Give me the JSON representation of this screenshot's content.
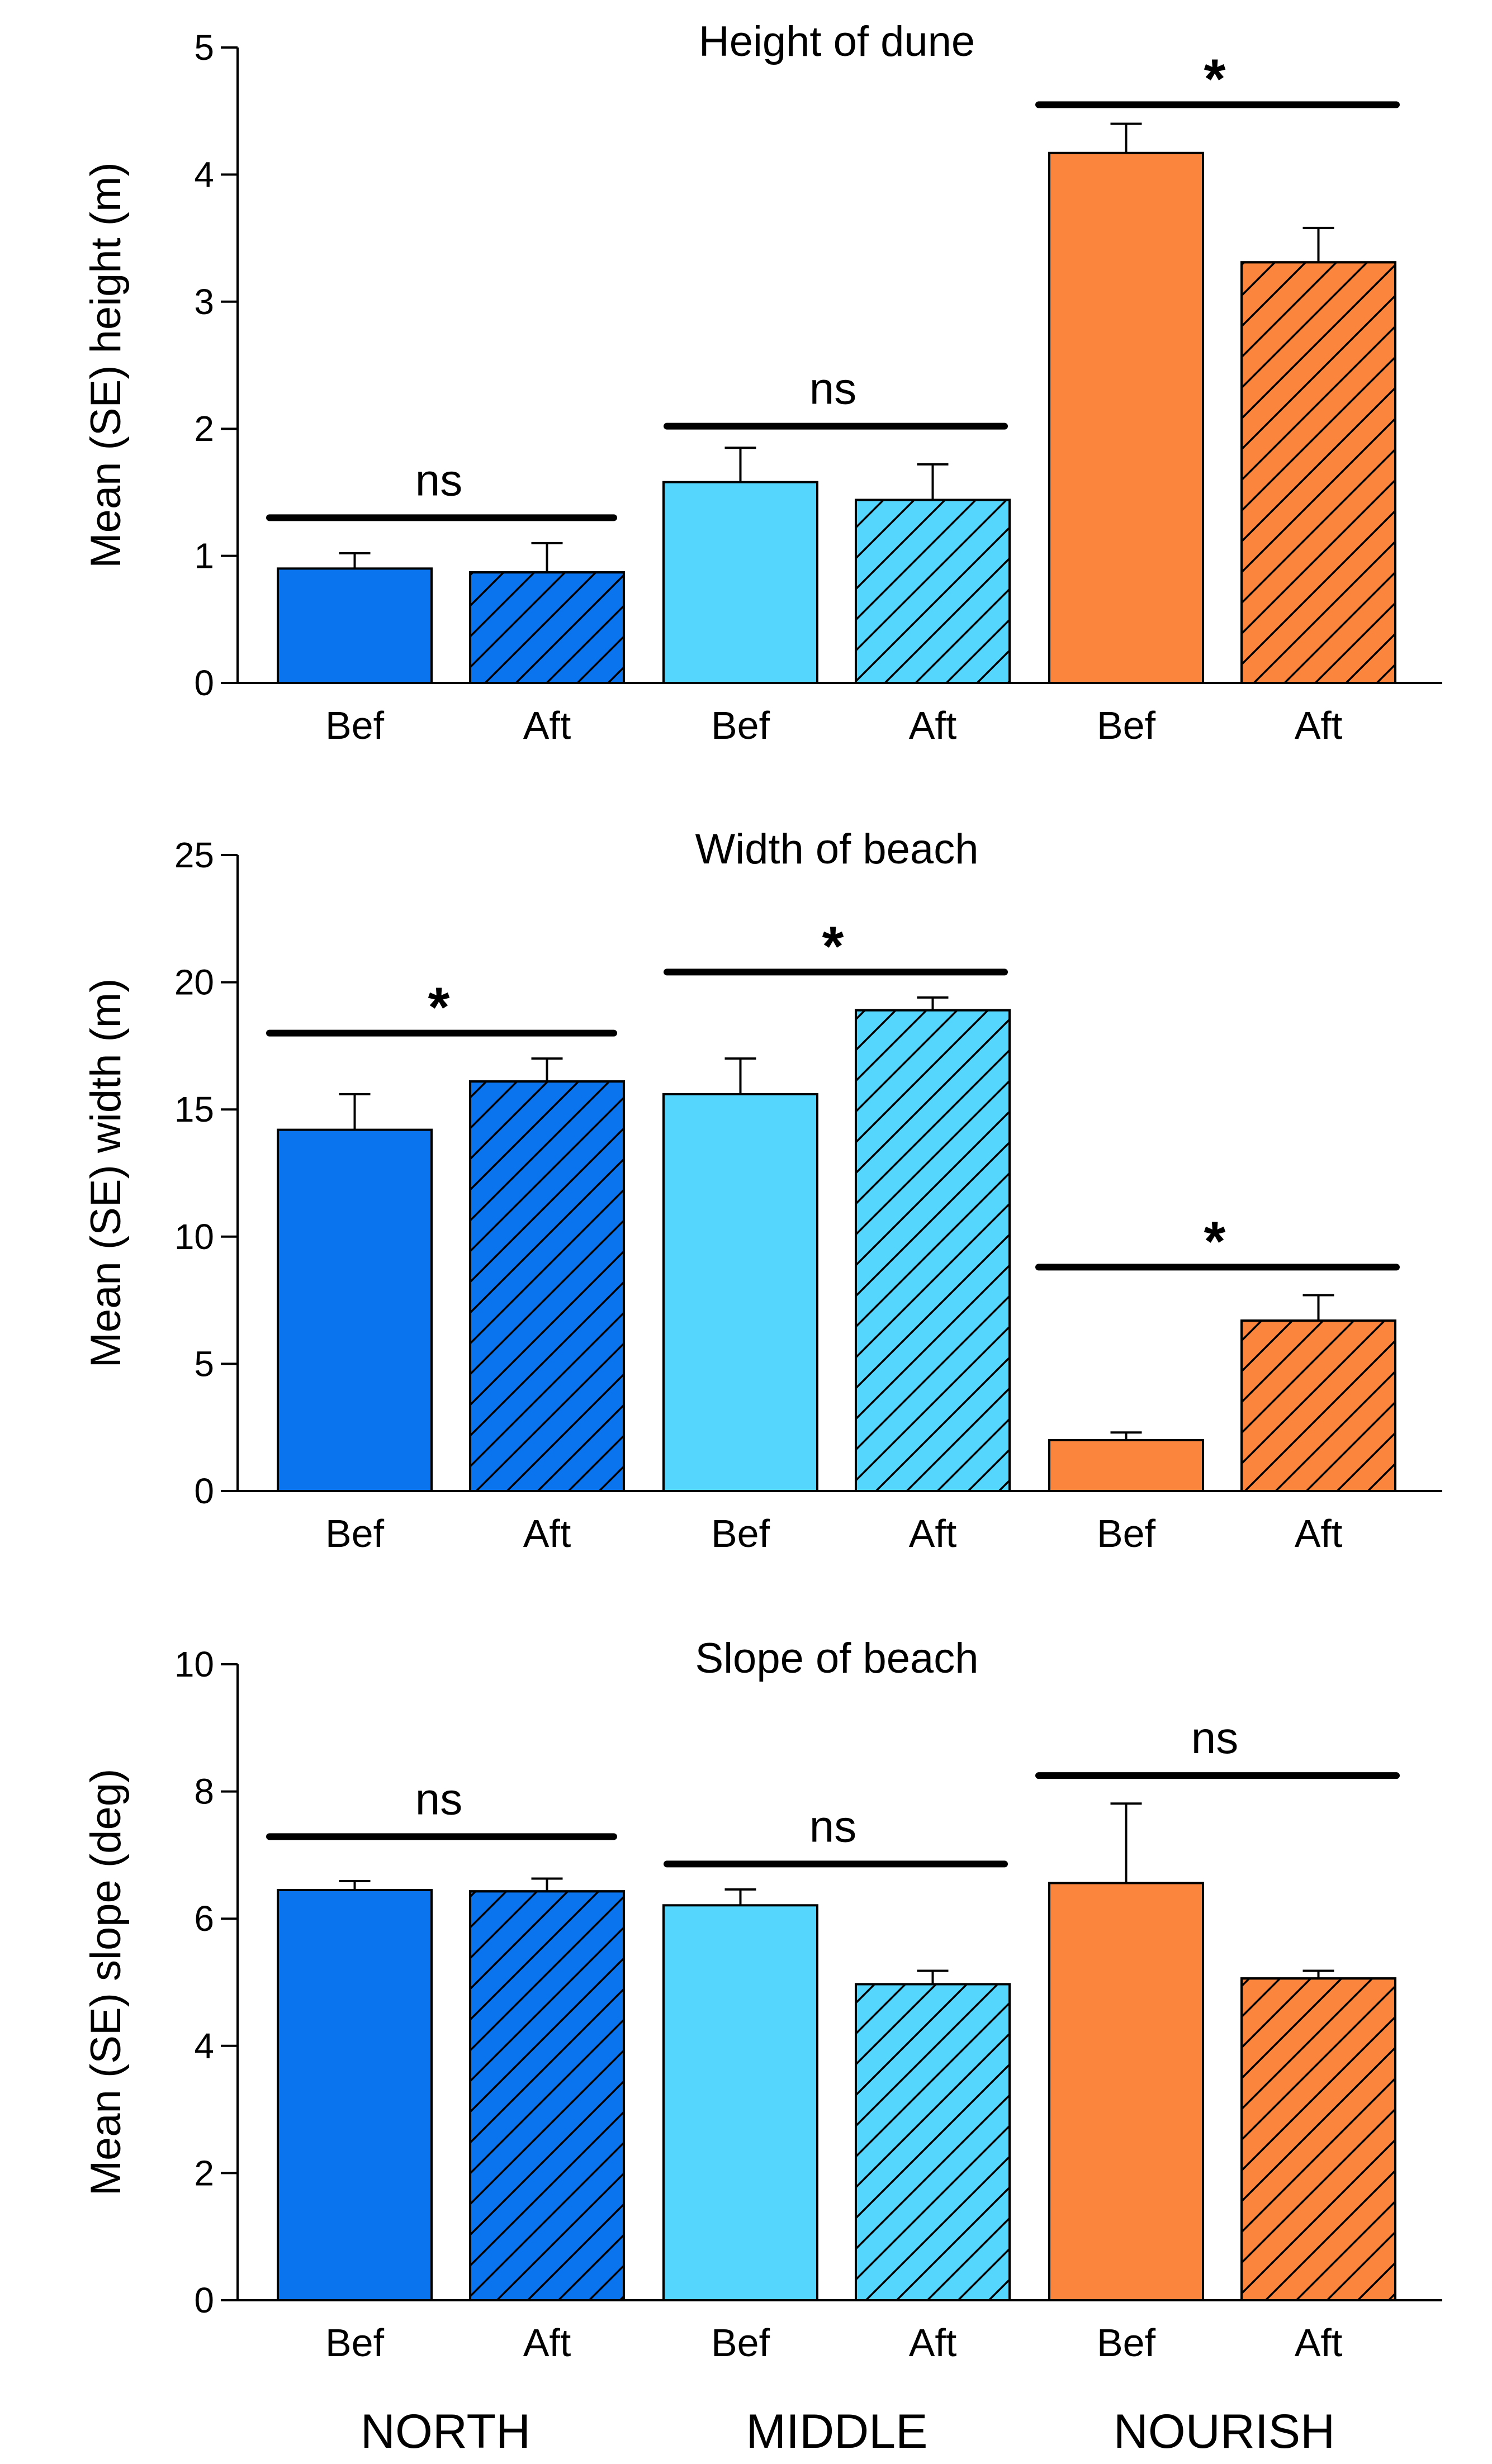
{
  "figure": {
    "group_labels": [
      "NORTH",
      "MIDDLE",
      "NOURISH"
    ],
    "bar_labels": [
      "Bef",
      "Aft",
      "Bef",
      "Aft",
      "Bef",
      "Aft"
    ]
  },
  "colors": {
    "north": "#0a74ee",
    "middle": "#55d6fc",
    "nourish": "#fb853d",
    "outline": "#000000"
  },
  "chart_data": [
    {
      "type": "bar",
      "title": "Height of dune",
      "ylabel": "Mean (SE) height (m)",
      "ylim": [
        0,
        5
      ],
      "yticks": [
        0,
        1,
        2,
        3,
        4,
        5
      ],
      "tick_labels": [
        "0",
        "1",
        "2",
        "3",
        "4",
        "5"
      ],
      "categories": [
        "Bef",
        "Aft",
        "Bef",
        "Aft",
        "Bef",
        "Aft"
      ],
      "groups": [
        "NORTH",
        "NORTH",
        "MIDDLE",
        "MIDDLE",
        "NOURISH",
        "NOURISH"
      ],
      "values": [
        0.9,
        0.87,
        1.58,
        1.44,
        4.17,
        3.31
      ],
      "se": [
        0.12,
        0.23,
        0.27,
        0.28,
        0.23,
        0.27
      ],
      "hatched": [
        false,
        true,
        false,
        true,
        false,
        true
      ],
      "significance": [
        {
          "group": "NORTH",
          "label": "ns",
          "y": 1.3
        },
        {
          "group": "MIDDLE",
          "label": "ns",
          "y": 2.02
        },
        {
          "group": "NOURISH",
          "label": "*",
          "y": 4.55
        }
      ]
    },
    {
      "type": "bar",
      "title": "Width of beach",
      "ylabel": "Mean (SE) width (m)",
      "ylim": [
        0,
        25
      ],
      "yticks": [
        0,
        5,
        10,
        15,
        20,
        25
      ],
      "tick_labels": [
        "0",
        "5",
        "10",
        "15",
        "20",
        "25"
      ],
      "categories": [
        "Bef",
        "Aft",
        "Bef",
        "Aft",
        "Bef",
        "Aft"
      ],
      "groups": [
        "NORTH",
        "NORTH",
        "MIDDLE",
        "MIDDLE",
        "NOURISH",
        "NOURISH"
      ],
      "values": [
        14.2,
        16.1,
        15.6,
        18.9,
        2.0,
        6.7
      ],
      "se": [
        1.4,
        0.9,
        1.4,
        0.5,
        0.3,
        1.0
      ],
      "hatched": [
        false,
        true,
        false,
        true,
        false,
        true
      ],
      "significance": [
        {
          "group": "NORTH",
          "label": "*",
          "y": 18.0
        },
        {
          "group": "MIDDLE",
          "label": "*",
          "y": 20.4
        },
        {
          "group": "NOURISH",
          "label": "*",
          "y": 8.8
        }
      ]
    },
    {
      "type": "bar",
      "title": "Slope of beach",
      "ylabel": "Mean (SE) slope (deg)",
      "ylim": [
        0,
        10
      ],
      "yticks": [
        0,
        2,
        4,
        6,
        8,
        10
      ],
      "tick_labels": [
        "0",
        "2",
        "4",
        "6",
        "8",
        "10"
      ],
      "categories": [
        "Bef",
        "Aft",
        "Bef",
        "Aft",
        "Bef",
        "Aft"
      ],
      "groups": [
        "NORTH",
        "NORTH",
        "MIDDLE",
        "MIDDLE",
        "NOURISH",
        "NOURISH"
      ],
      "values": [
        6.45,
        6.43,
        6.21,
        4.97,
        6.56,
        5.06
      ],
      "se": [
        0.14,
        0.2,
        0.25,
        0.21,
        1.25,
        0.12
      ],
      "hatched": [
        false,
        true,
        false,
        true,
        false,
        true
      ],
      "significance": [
        {
          "group": "NORTH",
          "label": "ns",
          "y": 7.29
        },
        {
          "group": "MIDDLE",
          "label": "ns",
          "y": 6.86
        },
        {
          "group": "NOURISH",
          "label": "ns",
          "y": 8.25
        }
      ]
    }
  ]
}
